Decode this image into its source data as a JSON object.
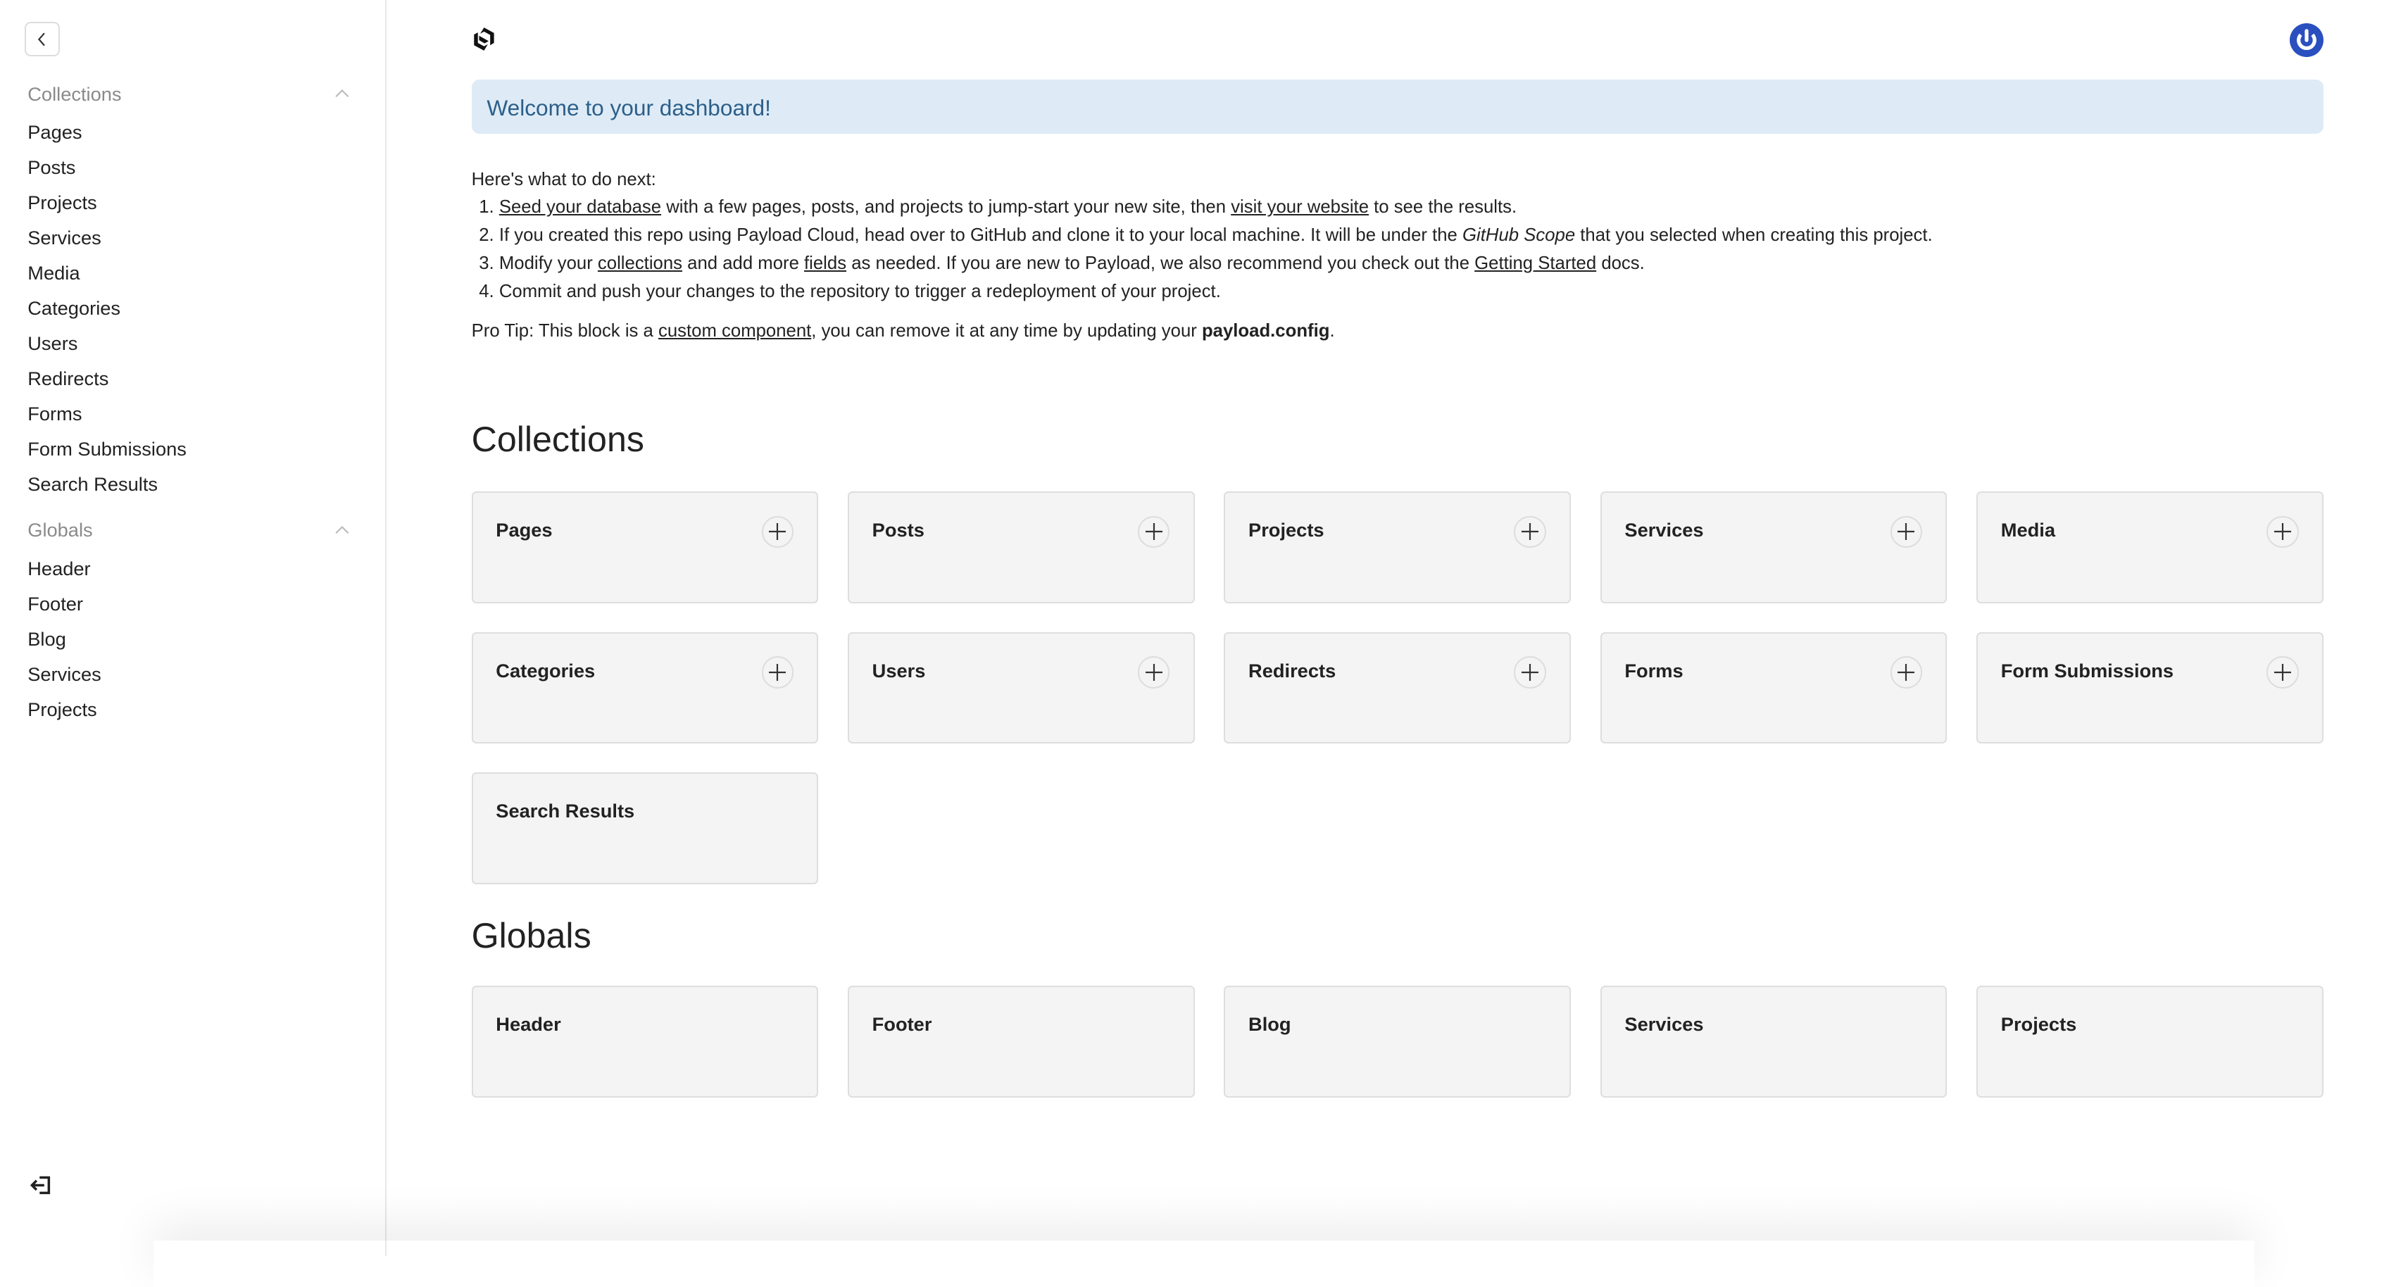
{
  "sidebar": {
    "collections_label": "Collections",
    "collections": [
      "Pages",
      "Posts",
      "Projects",
      "Services",
      "Media",
      "Categories",
      "Users",
      "Redirects",
      "Forms",
      "Form Submissions",
      "Search Results"
    ],
    "globals_label": "Globals",
    "globals": [
      "Header",
      "Footer",
      "Blog",
      "Services",
      "Projects"
    ],
    "icons": {
      "back": "chevron-left-icon",
      "collapse": "chevron-up-icon",
      "logout": "logout-icon"
    }
  },
  "header": {
    "logo": "payload-logo-icon",
    "account": "account-icon",
    "account_color": "#2a4fbf"
  },
  "banner": {
    "text": "Welcome to your dashboard!",
    "bg": "#deebf6",
    "color": "#2c5f8a"
  },
  "intro": {
    "lead": "Here's what to do next:",
    "steps": [
      [
        {
          "t": "Seed your database",
          "link": true
        },
        {
          "t": " with a few pages, posts, and projects to jump-start your new site, then "
        },
        {
          "t": "visit your website",
          "link": true
        },
        {
          "t": " to see the results."
        }
      ],
      [
        {
          "t": "If you created this repo using Payload Cloud, head over to GitHub and clone it to your local machine. It will be under the "
        },
        {
          "t": "GitHub Scope",
          "italic": true
        },
        {
          "t": " that you selected when creating this project."
        }
      ],
      [
        {
          "t": "Modify your "
        },
        {
          "t": "collections",
          "link": true
        },
        {
          "t": " and add more "
        },
        {
          "t": "fields",
          "link": true
        },
        {
          "t": " as needed. If you are new to Payload, we also recommend you check out the "
        },
        {
          "t": "Getting Started",
          "link": true
        },
        {
          "t": " docs."
        }
      ],
      [
        {
          "t": "Commit and push your changes to the repository to trigger a redeployment of your project."
        }
      ]
    ],
    "protip": [
      {
        "t": "Pro Tip: This block is a "
      },
      {
        "t": "custom component",
        "link": true
      },
      {
        "t": ", you can remove it at any time by updating your "
      },
      {
        "t": "payload.config",
        "bold": true
      },
      {
        "t": "."
      }
    ]
  },
  "main": {
    "collections_heading": "Collections",
    "collections": [
      {
        "label": "Pages",
        "add": true
      },
      {
        "label": "Posts",
        "add": true
      },
      {
        "label": "Projects",
        "add": true
      },
      {
        "label": "Services",
        "add": true
      },
      {
        "label": "Media",
        "add": true
      },
      {
        "label": "Categories",
        "add": true
      },
      {
        "label": "Users",
        "add": true
      },
      {
        "label": "Redirects",
        "add": true
      },
      {
        "label": "Forms",
        "add": true
      },
      {
        "label": "Form Submissions",
        "add": true
      },
      {
        "label": "Search Results",
        "add": false
      }
    ],
    "globals_heading": "Globals",
    "globals": [
      "Header",
      "Footer",
      "Blog",
      "Services",
      "Projects"
    ]
  }
}
